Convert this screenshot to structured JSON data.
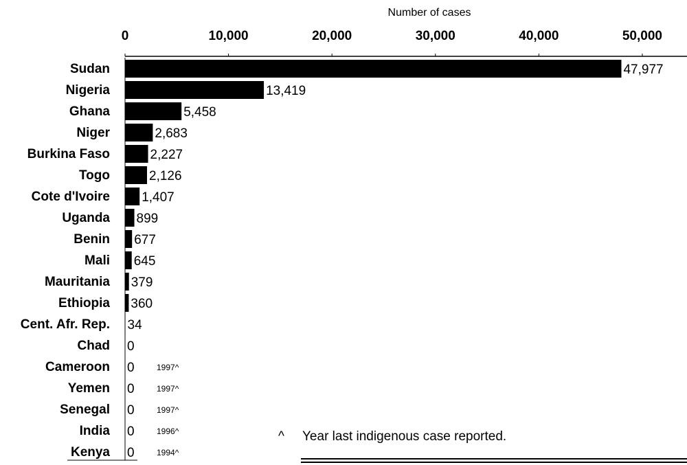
{
  "chart_data": {
    "type": "bar",
    "orientation": "horizontal",
    "title": "",
    "xlabel": "Number of cases",
    "ylabel": "",
    "xlim": [
      0,
      54000
    ],
    "ticks": [
      {
        "value": 0,
        "label": "0"
      },
      {
        "value": 10000,
        "label": "10,000"
      },
      {
        "value": 20000,
        "label": "20,000"
      },
      {
        "value": 30000,
        "label": "30,000"
      },
      {
        "value": 40000,
        "label": "40,000"
      },
      {
        "value": 50000,
        "label": "50,000"
      }
    ],
    "axis_position": "top",
    "grid": false,
    "bar_color": "#000000",
    "categories": [
      "Sudan",
      "Nigeria",
      "Ghana",
      "Niger",
      "Burkina Faso",
      "Togo",
      "Cote d'Ivoire",
      "Uganda",
      "Benin",
      "Mali",
      "Mauritania",
      "Ethiopia",
      "Cent. Afr. Rep.",
      "Chad",
      "Cameroon",
      "Yemen",
      "Senegal",
      "India",
      "Kenya"
    ],
    "values": [
      47977,
      13419,
      5458,
      2683,
      2227,
      2126,
      1407,
      899,
      677,
      645,
      379,
      360,
      34,
      0,
      0,
      0,
      0,
      0,
      0
    ],
    "value_labels": [
      "47,977",
      "13,419",
      "5,458",
      "2,683",
      "2,227",
      "2,126",
      "1,407",
      "899",
      "677",
      "645",
      "379",
      "360",
      "34",
      "0",
      "0",
      "0",
      "0",
      "0",
      "0"
    ],
    "annotations": [
      "",
      "",
      "",
      "",
      "",
      "",
      "",
      "",
      "",
      "",
      "",
      "",
      "",
      "",
      "1997^",
      "1997^",
      "1997^",
      "1996^",
      "1994^"
    ],
    "footnote_marker": "^",
    "footnote_text": "Year last indigenous case reported."
  }
}
